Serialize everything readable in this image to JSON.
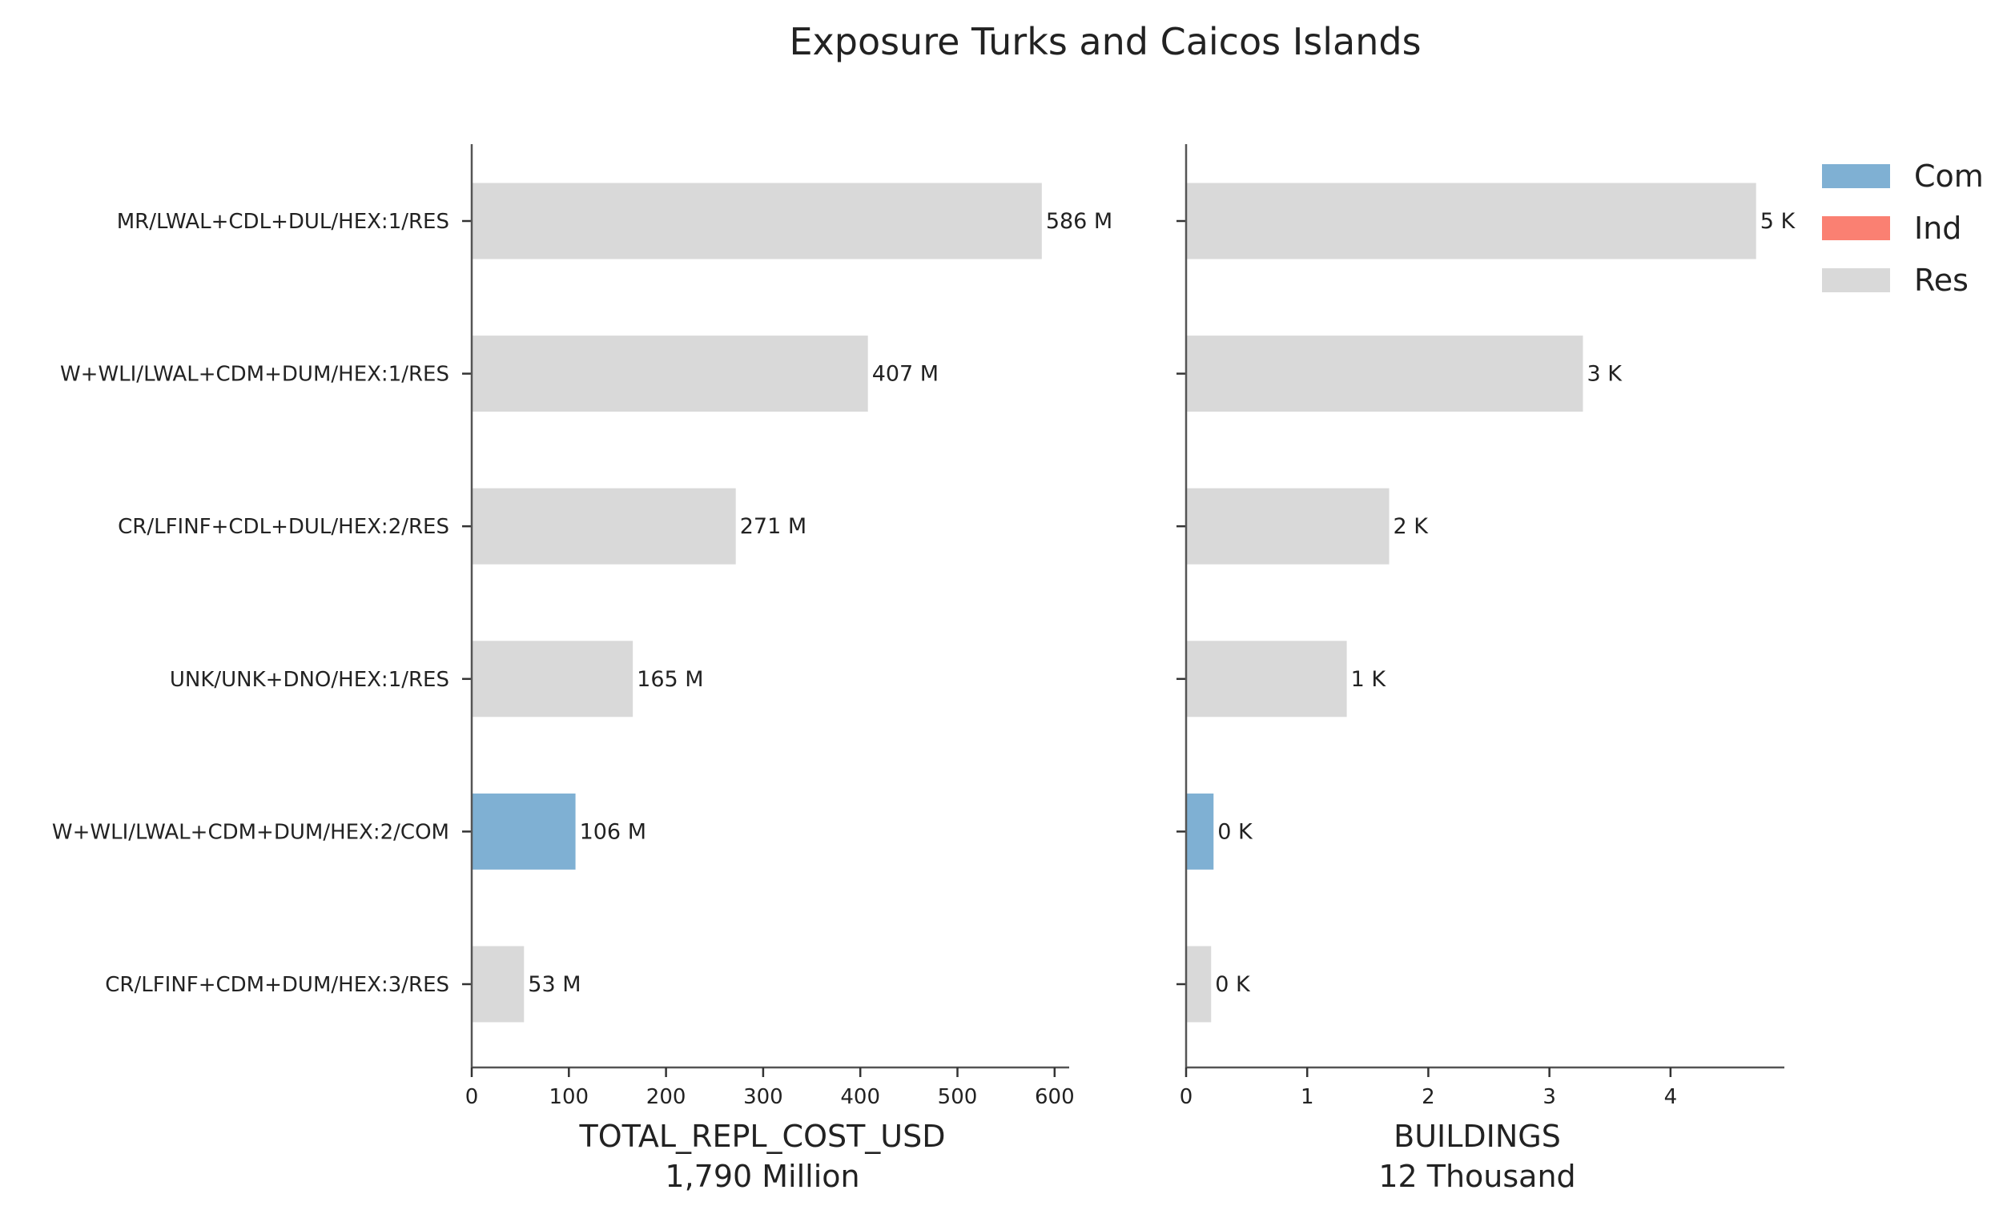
{
  "chart_data": {
    "type": "bar",
    "orientation": "horizontal",
    "title": "Exposure Turks and Caicos Islands",
    "categories": [
      "MR/LWAL+CDL+DUL/HEX:1/RES",
      "W+WLI/LWAL+CDM+DUM/HEX:1/RES",
      "CR/LFINF+CDL+DUL/HEX:2/RES",
      "UNK/UNK+DNO/HEX:1/RES",
      "W+WLI/LWAL+CDM+DUM/HEX:2/COM",
      "CR/LFINF+CDM+DUM/HEX:3/RES"
    ],
    "occupancy": [
      "Res",
      "Res",
      "Res",
      "Res",
      "Com",
      "Res"
    ],
    "legend": {
      "position": "top-right",
      "items": [
        {
          "name": "Com",
          "color": "#7fb0d3"
        },
        {
          "name": "Ind",
          "color": "#fa8072"
        },
        {
          "name": "Res",
          "color": "#d9d9d9"
        }
      ]
    },
    "panels": [
      {
        "metric": "TOTAL_REPL_COST_USD",
        "xlabel": "TOTAL_REPL_COST_USD",
        "subtitle": "1,790 Million",
        "unit": "Million",
        "values": [
          586,
          407,
          271,
          165,
          106,
          53
        ],
        "value_labels": [
          "586 M",
          "407 M",
          "271 M",
          "165 M",
          "106 M",
          "53 M"
        ],
        "xlim": [
          0,
          615
        ],
        "xticks": [
          0,
          100,
          200,
          300,
          400,
          500,
          600
        ]
      },
      {
        "metric": "BUILDINGS",
        "xlabel": "BUILDINGS",
        "subtitle": "12 Thousand",
        "unit": "Thousand",
        "values": [
          4.7,
          3.27,
          1.67,
          1.32,
          0.22,
          0.2
        ],
        "value_labels": [
          "5 K",
          "3 K",
          "2 K",
          "1 K",
          "0 K",
          "0 K"
        ],
        "xlim": [
          0,
          4.94
        ],
        "xticks": [
          0,
          1,
          2,
          3,
          4
        ]
      }
    ],
    "grid": false
  }
}
